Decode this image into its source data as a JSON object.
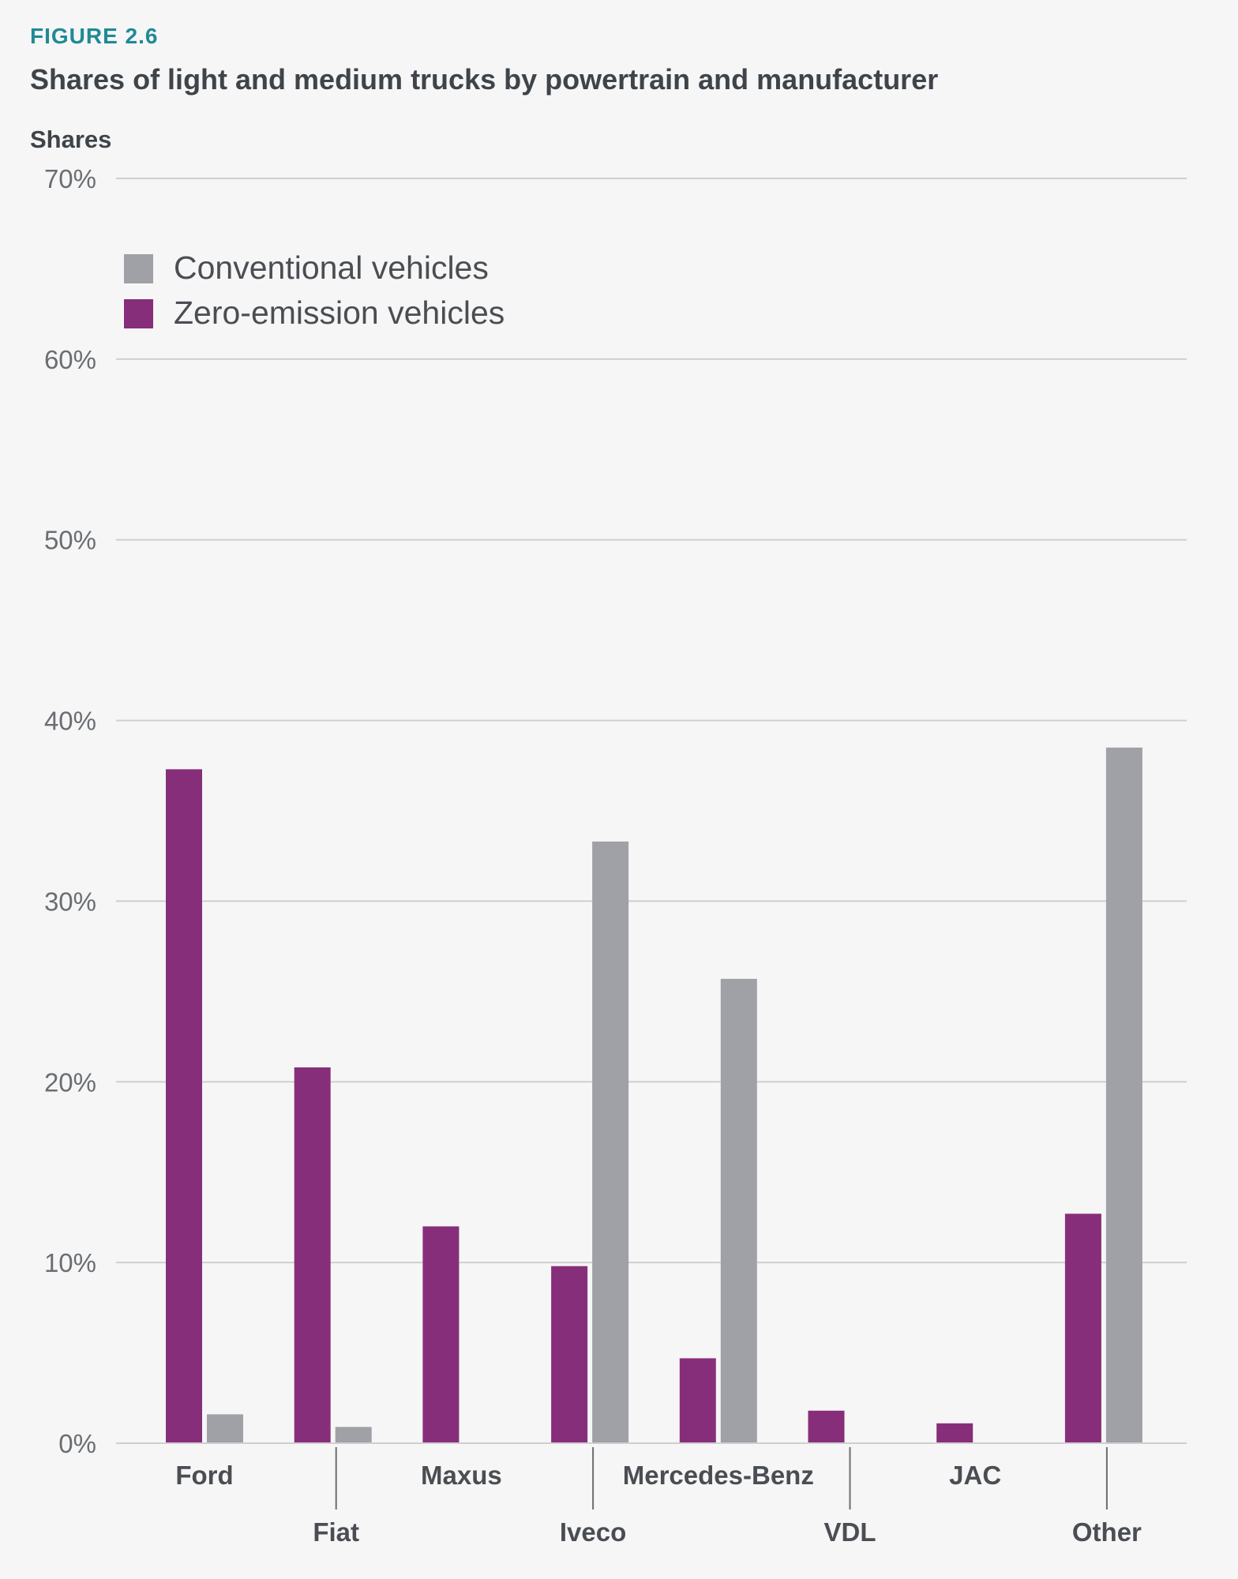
{
  "figure_label": "FIGURE 2.6",
  "figure_title": "Shares of light and medium trucks by powertrain and manufacturer",
  "colors": {
    "zero_emission": "#872e7a",
    "conventional": "#a0a1a6",
    "grid": "#cfcfd2",
    "background": "#f6f6f6"
  },
  "chart_data": {
    "type": "bar",
    "title": "Shares of light and medium trucks by powertrain and manufacturer",
    "xlabel": "",
    "ylabel": "Shares",
    "ylim": [
      0,
      70
    ],
    "yticks": [
      "0%",
      "10%",
      "20%",
      "30%",
      "40%",
      "50%",
      "60%",
      "70%"
    ],
    "grid": true,
    "legend_position": "top-left",
    "categories": [
      "Ford",
      "Fiat",
      "Maxus",
      "Iveco",
      "Mercedes-Benz",
      "VDL",
      "JAC",
      "Other"
    ],
    "series": [
      {
        "name": "Zero-emission vehicles",
        "values": [
          37.3,
          20.8,
          12.0,
          9.8,
          4.7,
          1.8,
          1.1,
          12.7
        ]
      },
      {
        "name": "Conventional vehicles",
        "values": [
          1.6,
          0.9,
          0,
          33.3,
          25.7,
          0,
          0,
          38.5
        ]
      }
    ],
    "legend": [
      "Conventional vehicles",
      "Zero-emission vehicles"
    ]
  }
}
